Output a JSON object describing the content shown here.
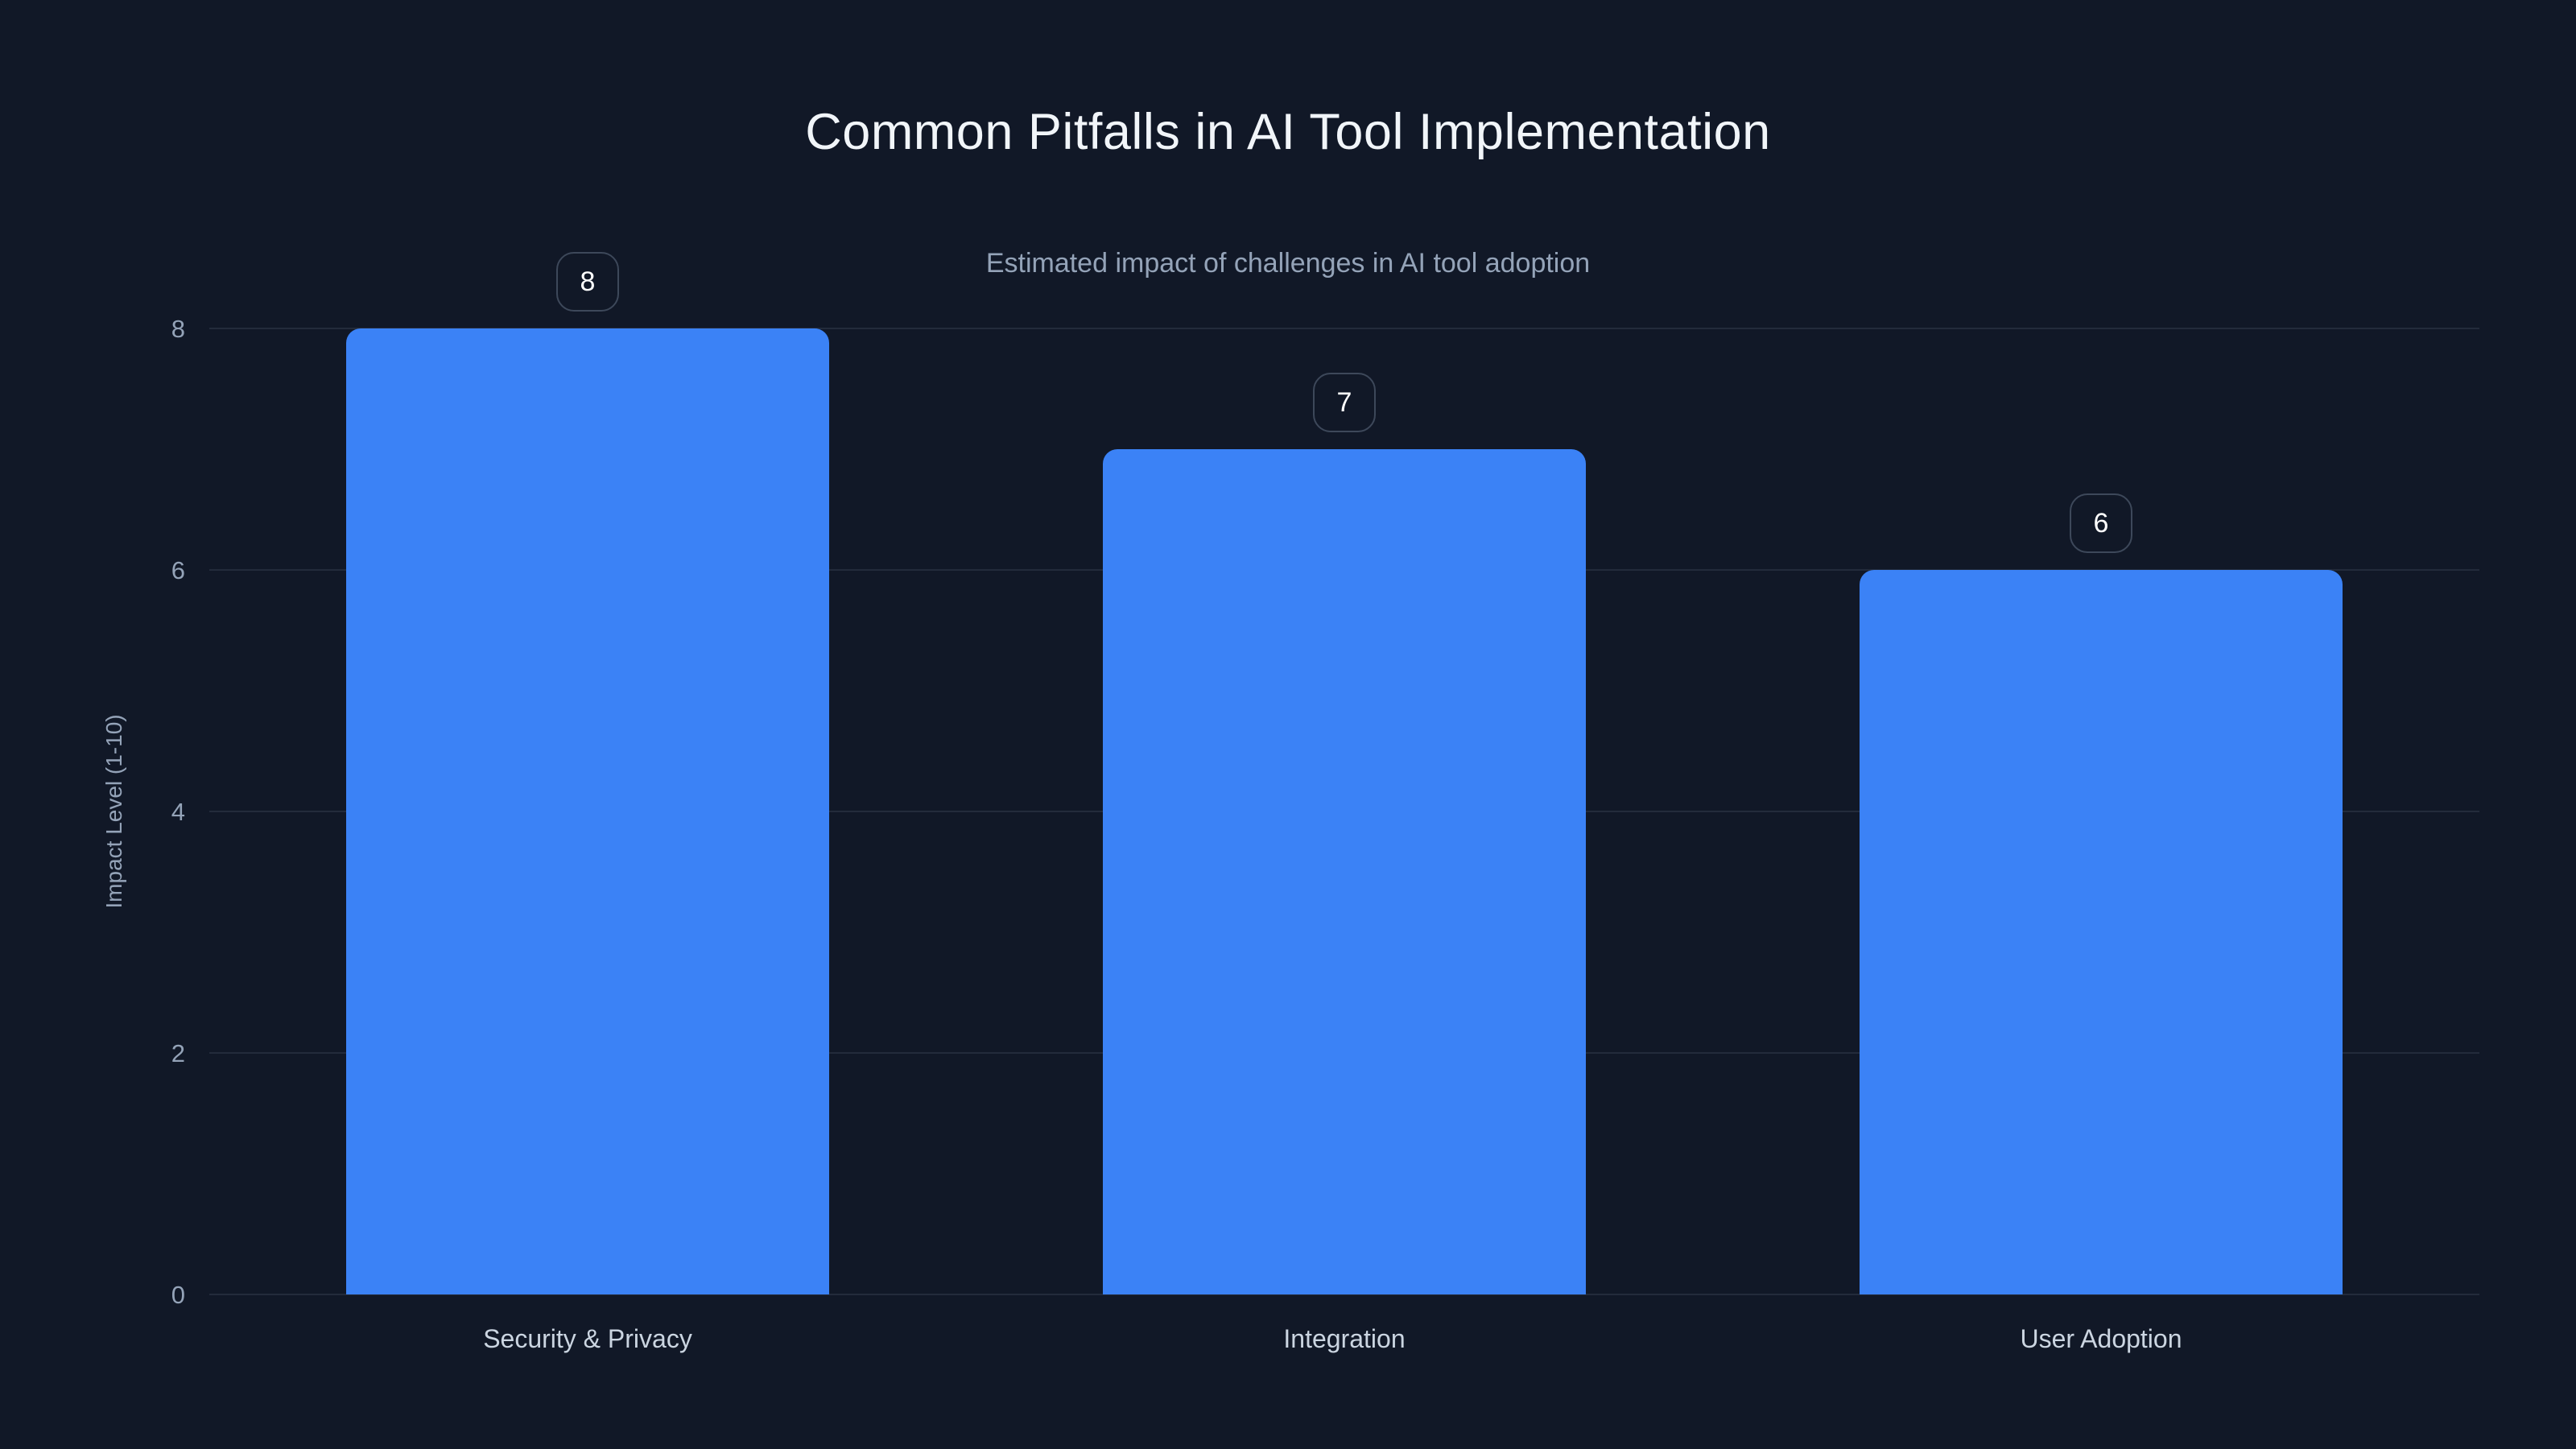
{
  "title": "Common Pitfalls in AI Tool Implementation",
  "subtitle": "Estimated impact of challenges in AI tool adoption",
  "colors": {
    "background": "#111827",
    "bar": "#3b82f6",
    "title_text": "#f1f5f9",
    "subtitle_text": "#94a3b8",
    "tick_text": "#94a3b8",
    "category_text": "#cbd5e1",
    "gridline": "rgba(148,163,184,0.14)",
    "badge_border": "#3d485a",
    "badge_text": "#ffffff"
  },
  "chart_data": {
    "type": "bar",
    "title": "Common Pitfalls in AI Tool Implementation",
    "subtitle": "Estimated impact of challenges in AI tool adoption",
    "categories": [
      "Security & Privacy",
      "Integration",
      "User Adoption"
    ],
    "values": [
      8,
      7,
      6
    ],
    "value_labels": [
      "8",
      "7",
      "6"
    ],
    "xlabel": "",
    "ylabel": "Impact Level (1-10)",
    "ylim": [
      0,
      8
    ],
    "yticks": [
      0,
      2,
      4,
      6,
      8
    ],
    "grid": "horizontal",
    "legend": false,
    "bar_value_badges": true
  }
}
